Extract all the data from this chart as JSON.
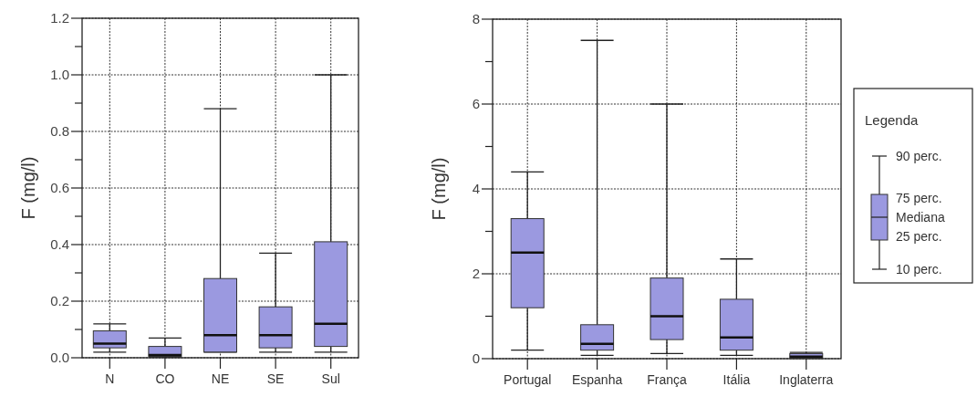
{
  "chart_data": [
    {
      "type": "box",
      "ylabel": "F (mg/l)",
      "categories": [
        "N",
        "CO",
        "NE",
        "SE",
        "Sul"
      ],
      "color": "#9b99e0",
      "boxes": [
        {
          "low": 0.02,
          "q1": 0.035,
          "median": 0.05,
          "q3": 0.095,
          "high": 0.12
        },
        {
          "low": 0.003,
          "q1": 0.005,
          "median": 0.01,
          "q3": 0.04,
          "high": 0.07
        },
        {
          "low": 0.02,
          "q1": 0.02,
          "median": 0.08,
          "q3": 0.28,
          "high": 0.88
        },
        {
          "low": 0.02,
          "q1": 0.035,
          "median": 0.08,
          "q3": 0.18,
          "high": 0.37
        },
        {
          "low": 0.02,
          "q1": 0.04,
          "median": 0.12,
          "q3": 0.41,
          "high": 1.0
        }
      ],
      "ylim": [
        0,
        1.2
      ],
      "yticks": [
        "0.0",
        {
          "value": 0.1,
          "label": null
        },
        {
          "value": 0.2,
          "label": "0.2"
        },
        {
          "value": 0.3,
          "label": null
        },
        {
          "value": 0.4,
          "label": "0.4"
        },
        {
          "value": 0.5,
          "label": null
        },
        {
          "value": 0.6,
          "label": "0.6"
        },
        {
          "value": 0.7,
          "label": null
        },
        {
          "value": 0.8,
          "label": "0.8"
        },
        {
          "value": 0.9,
          "label": null
        },
        {
          "value": 1.0,
          "label": "1.0"
        },
        {
          "value": 1.1,
          "label": null
        },
        {
          "value": 1.2,
          "label": "1.2"
        }
      ],
      "grid": true
    },
    {
      "type": "box",
      "ylabel": "F (mg/l)",
      "categories": [
        "Portugal",
        "Espanha",
        "França",
        "Itália",
        "Inglaterra"
      ],
      "color": "#9b99e0",
      "boxes": [
        {
          "low": 0.2,
          "q1": 1.2,
          "median": 2.5,
          "q3": 3.3,
          "high": 4.4
        },
        {
          "low": 0.08,
          "q1": 0.2,
          "median": 0.35,
          "q3": 0.8,
          "high": 7.5
        },
        {
          "low": 0.12,
          "q1": 0.45,
          "median": 1.0,
          "q3": 1.9,
          "high": 6.0
        },
        {
          "low": 0.08,
          "q1": 0.2,
          "median": 0.5,
          "q3": 1.4,
          "high": 2.35
        },
        {
          "low": 0.01,
          "q1": 0.01,
          "median": 0.05,
          "q3": 0.12,
          "high": 0.15
        }
      ],
      "ylim": [
        0,
        8
      ],
      "yticks": [
        0,
        {
          "value": 1,
          "label": null
        },
        2,
        {
          "value": 3,
          "label": null
        },
        4,
        {
          "value": 5,
          "label": null
        },
        6,
        {
          "value": 7,
          "label": null
        },
        8
      ],
      "grid": true
    },
    {
      "type": "other",
      "title": "Legenda",
      "annotations": [
        "90 perc.",
        "75 perc.",
        "Mediana",
        "25 perc.",
        "10 perc."
      ]
    }
  ]
}
